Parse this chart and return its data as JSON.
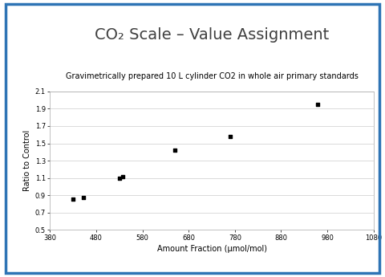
{
  "subtitle": "Gravimetrically prepared 10 L cylinder CO2 in whole air primary standards",
  "xlabel": "Amount Fraction (μmol/mol)",
  "ylabel": "Ratio to Control",
  "x_data": [
    430,
    452,
    530,
    537,
    650,
    770,
    960
  ],
  "y_data": [
    0.855,
    0.875,
    1.1,
    1.115,
    1.42,
    1.575,
    1.95
  ],
  "xlim": [
    380,
    1080
  ],
  "ylim": [
    0.5,
    2.1
  ],
  "xticks": [
    380,
    480,
    580,
    680,
    780,
    880,
    980,
    1080
  ],
  "yticks": [
    0.5,
    0.7,
    0.9,
    1.1,
    1.3,
    1.5,
    1.7,
    1.9,
    2.1
  ],
  "marker_color": "#000000",
  "marker_size": 8,
  "grid_color": "#cccccc",
  "bg_color": "#ffffff",
  "border_color": "#2e74b5",
  "border_linewidth": 2.5,
  "title_fontsize": 14,
  "subtitle_fontsize": 7,
  "axis_label_fontsize": 7,
  "tick_fontsize": 6
}
